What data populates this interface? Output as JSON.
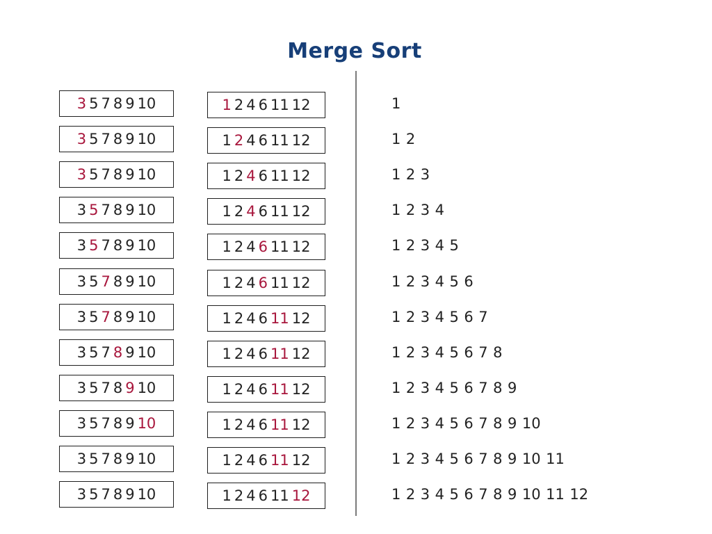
{
  "title": "Merge Sort",
  "colors": {
    "title": "#173f78",
    "highlight": "#a8163c",
    "text": "#222222",
    "border": "#1e1e1e",
    "divider": "#7a7a7a"
  },
  "left_array": [
    "3",
    "5",
    "7",
    "8",
    "9",
    "10"
  ],
  "right_array": [
    "1",
    "2",
    "4",
    "6",
    "11",
    "12"
  ],
  "steps": [
    {
      "left_pointer": 0,
      "right_pointer": 0,
      "merged": [
        "1"
      ]
    },
    {
      "left_pointer": 0,
      "right_pointer": 1,
      "merged": [
        "1",
        "2"
      ]
    },
    {
      "left_pointer": 0,
      "right_pointer": 2,
      "merged": [
        "1",
        "2",
        "3"
      ]
    },
    {
      "left_pointer": 1,
      "right_pointer": 2,
      "merged": [
        "1",
        "2",
        "3",
        "4"
      ]
    },
    {
      "left_pointer": 1,
      "right_pointer": 3,
      "merged": [
        "1",
        "2",
        "3",
        "4",
        "5"
      ]
    },
    {
      "left_pointer": 2,
      "right_pointer": 3,
      "merged": [
        "1",
        "2",
        "3",
        "4",
        "5",
        "6"
      ]
    },
    {
      "left_pointer": 2,
      "right_pointer": 4,
      "merged": [
        "1",
        "2",
        "3",
        "4",
        "5",
        "6",
        "7"
      ]
    },
    {
      "left_pointer": 3,
      "right_pointer": 4,
      "merged": [
        "1",
        "2",
        "3",
        "4",
        "5",
        "6",
        "7",
        "8"
      ]
    },
    {
      "left_pointer": 4,
      "right_pointer": 4,
      "merged": [
        "1",
        "2",
        "3",
        "4",
        "5",
        "6",
        "7",
        "8",
        "9"
      ]
    },
    {
      "left_pointer": 5,
      "right_pointer": 4,
      "merged": [
        "1",
        "2",
        "3",
        "4",
        "5",
        "6",
        "7",
        "8",
        "9",
        "10"
      ]
    },
    {
      "left_pointer": -1,
      "right_pointer": 4,
      "merged": [
        "1",
        "2",
        "3",
        "4",
        "5",
        "6",
        "7",
        "8",
        "9",
        "10",
        "11"
      ]
    },
    {
      "left_pointer": -1,
      "right_pointer": 5,
      "merged": [
        "1",
        "2",
        "3",
        "4",
        "5",
        "6",
        "7",
        "8",
        "9",
        "10",
        "11",
        "12"
      ]
    }
  ]
}
